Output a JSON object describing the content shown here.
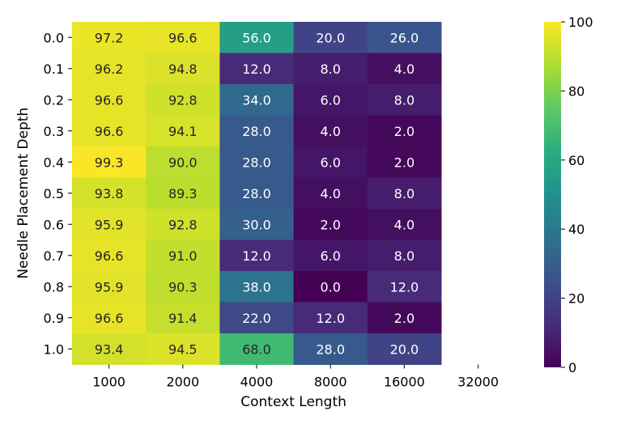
{
  "chart_data": {
    "type": "heatmap",
    "xlabel": "Context Length",
    "ylabel": "Needle Placement Depth",
    "x_categories": [
      "1000",
      "2000",
      "4000",
      "8000",
      "16000",
      "32000"
    ],
    "y_categories": [
      "0.0",
      "0.1",
      "0.2",
      "0.3",
      "0.4",
      "0.5",
      "0.6",
      "0.7",
      "0.8",
      "0.9",
      "1.0"
    ],
    "values": [
      [
        97.2,
        96.6,
        56.0,
        20.0,
        26.0,
        null
      ],
      [
        96.2,
        94.8,
        12.0,
        8.0,
        4.0,
        null
      ],
      [
        96.6,
        92.8,
        34.0,
        6.0,
        8.0,
        null
      ],
      [
        96.6,
        94.1,
        28.0,
        4.0,
        2.0,
        null
      ],
      [
        99.3,
        90.0,
        28.0,
        6.0,
        2.0,
        null
      ],
      [
        93.8,
        89.3,
        28.0,
        4.0,
        8.0,
        null
      ],
      [
        95.9,
        92.8,
        30.0,
        2.0,
        4.0,
        null
      ],
      [
        96.6,
        91.0,
        12.0,
        6.0,
        8.0,
        null
      ],
      [
        95.9,
        90.3,
        38.0,
        0.0,
        12.0,
        null
      ],
      [
        96.6,
        91.4,
        22.0,
        12.0,
        2.0,
        null
      ],
      [
        93.4,
        94.5,
        68.0,
        28.0,
        20.0,
        null
      ]
    ],
    "value_range": [
      0,
      100
    ],
    "colormap": "viridis",
    "colorbar_ticks": [
      "0",
      "20",
      "40",
      "60",
      "80",
      "100"
    ],
    "grid": false,
    "legend": "colorbar-right"
  }
}
